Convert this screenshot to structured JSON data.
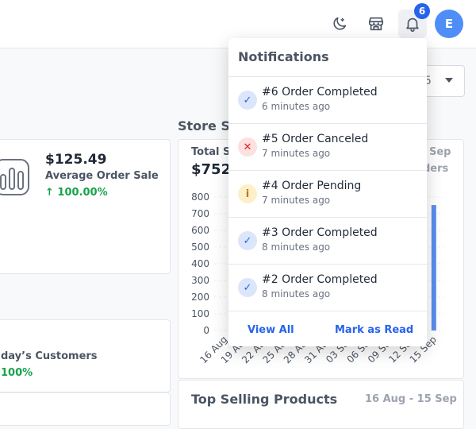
{
  "header": {
    "notification_count": "6",
    "avatar_initial": "E",
    "icons": [
      "theme-moon-icon",
      "store-icon",
      "bell-icon"
    ]
  },
  "filter": {
    "value": "5"
  },
  "stats": {
    "avg_order": {
      "value": "$125.49",
      "label": "Average Order Sale",
      "change": "100.00%"
    },
    "customers": {
      "label": "day’s Customers",
      "change": "100%"
    }
  },
  "store_sales": {
    "title": "Store S",
    "total_label": "Total Sa",
    "total_value": "$752",
    "date_range_fragment": "Sep",
    "orders_fragment": "ders"
  },
  "top_selling": {
    "title": "Top Selling Products",
    "date_range": "16 Aug - 15 Sep"
  },
  "chart_data": {
    "type": "bar",
    "categories": [
      "16 Aug",
      "19 Aug",
      "22 Aug",
      "25 Aug",
      "28 Aug",
      "31 Aug",
      "03 Sep",
      "06 Sep",
      "09 Sep",
      "12 Sep",
      "15 Sep"
    ],
    "values": [
      0,
      0,
      0,
      0,
      0,
      0,
      0,
      0,
      0,
      0,
      752
    ],
    "ylim": [
      0,
      800
    ],
    "yticks": [
      "800",
      "700",
      "600",
      "500",
      "400",
      "300",
      "200",
      "100",
      "0"
    ],
    "bar_color": "#5b8def"
  },
  "notifications": {
    "title": "Notifications",
    "items": [
      {
        "status": "done",
        "icon": "check-icon",
        "title": "#6 Order Completed",
        "time": "6 minutes ago"
      },
      {
        "status": "cancel",
        "icon": "x-icon",
        "title": "#5 Order Canceled",
        "time": "7 minutes ago"
      },
      {
        "status": "pending",
        "icon": "info-icon",
        "title": "#4 Order Pending",
        "time": "7 minutes ago"
      },
      {
        "status": "done",
        "icon": "check-icon",
        "title": "#3 Order Completed",
        "time": "8 minutes ago"
      },
      {
        "status": "done",
        "icon": "check-icon",
        "title": "#2 Order Completed",
        "time": "8 minutes ago"
      }
    ],
    "view_all": "View All",
    "mark_read": "Mark as Read"
  }
}
